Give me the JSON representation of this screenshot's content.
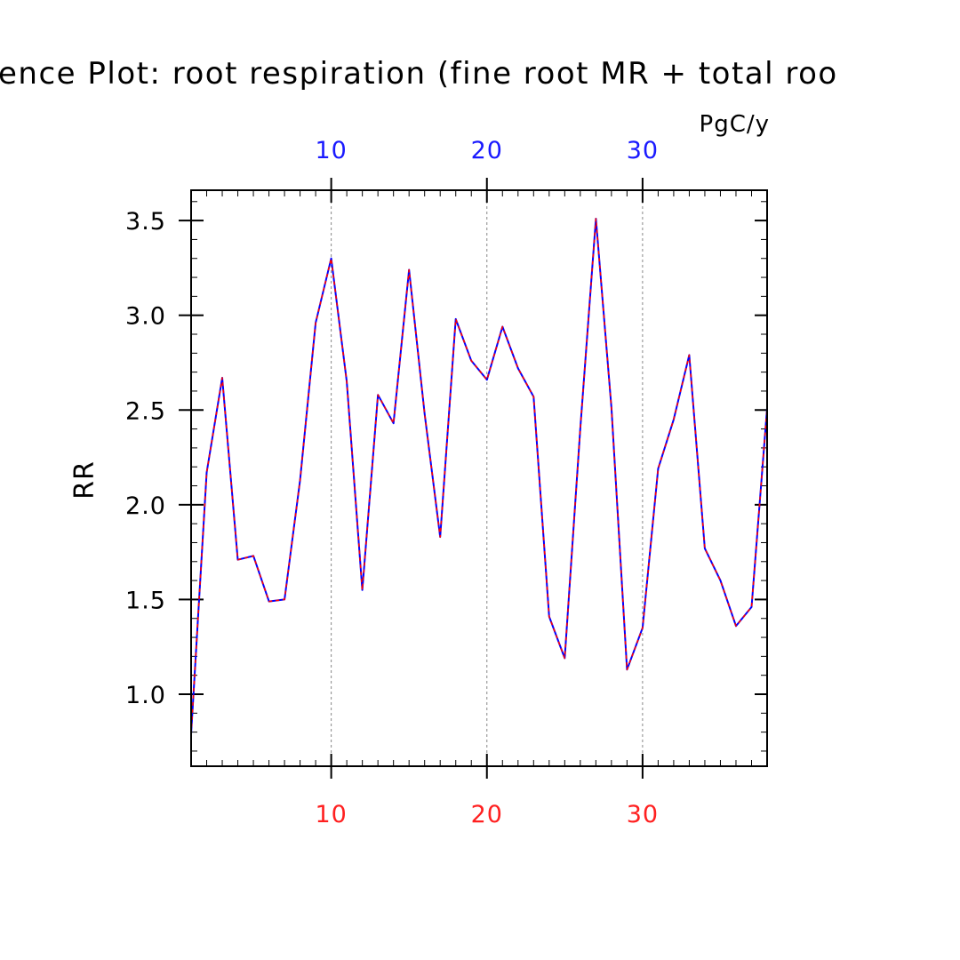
{
  "chart_data": {
    "type": "line",
    "title": "ence Plot: root respiration (fine root MR + total roo",
    "units": "PgC/y",
    "ylabel": "RR",
    "xlim": [
      1,
      38
    ],
    "ylim": [
      0.62,
      3.66
    ],
    "grid": "vertical dashed at major x ticks",
    "x_major_ticks": [
      10,
      20,
      30
    ],
    "x_tick_labels": [
      "10",
      "20",
      "30"
    ],
    "y_major_ticks": [
      1.0,
      1.5,
      2.0,
      2.5,
      3.0,
      3.5
    ],
    "y_tick_labels": [
      "1.0",
      "1.5",
      "2.0",
      "2.5",
      "3.0",
      "3.5"
    ],
    "colors": {
      "series_a": "#0000ff",
      "series_b": "#ff0000",
      "top_axis": "#1a1aff",
      "bottom_axis": "#ff2020"
    },
    "x": [
      1,
      2,
      3,
      4,
      5,
      6,
      7,
      8,
      9,
      10,
      11,
      12,
      13,
      14,
      15,
      16,
      17,
      18,
      19,
      20,
      21,
      22,
      23,
      24,
      25,
      26,
      27,
      28,
      29,
      30,
      31,
      32,
      33,
      34,
      35,
      36,
      37,
      38
    ],
    "series": [
      {
        "values": [
          0.79,
          2.17,
          2.67,
          1.71,
          1.73,
          1.49,
          1.5,
          2.13,
          2.96,
          3.3,
          2.65,
          1.55,
          2.58,
          2.43,
          3.24,
          2.48,
          1.83,
          2.98,
          2.76,
          2.66,
          2.94,
          2.72,
          2.57,
          1.41,
          1.19,
          2.4,
          3.51,
          2.51,
          1.13,
          1.35,
          2.19,
          2.45,
          2.79,
          1.77,
          1.6,
          1.36,
          1.46,
          2.51
        ]
      },
      {
        "values": [
          0.79,
          2.17,
          2.67,
          1.71,
          1.73,
          1.49,
          1.5,
          2.13,
          2.96,
          3.3,
          2.65,
          1.55,
          2.58,
          2.43,
          3.24,
          2.48,
          1.83,
          2.98,
          2.76,
          2.66,
          2.94,
          2.72,
          2.57,
          1.41,
          1.19,
          2.4,
          3.51,
          2.51,
          1.13,
          1.35,
          2.19,
          2.45,
          2.79,
          1.77,
          1.6,
          1.36,
          1.46,
          2.51
        ]
      }
    ]
  }
}
